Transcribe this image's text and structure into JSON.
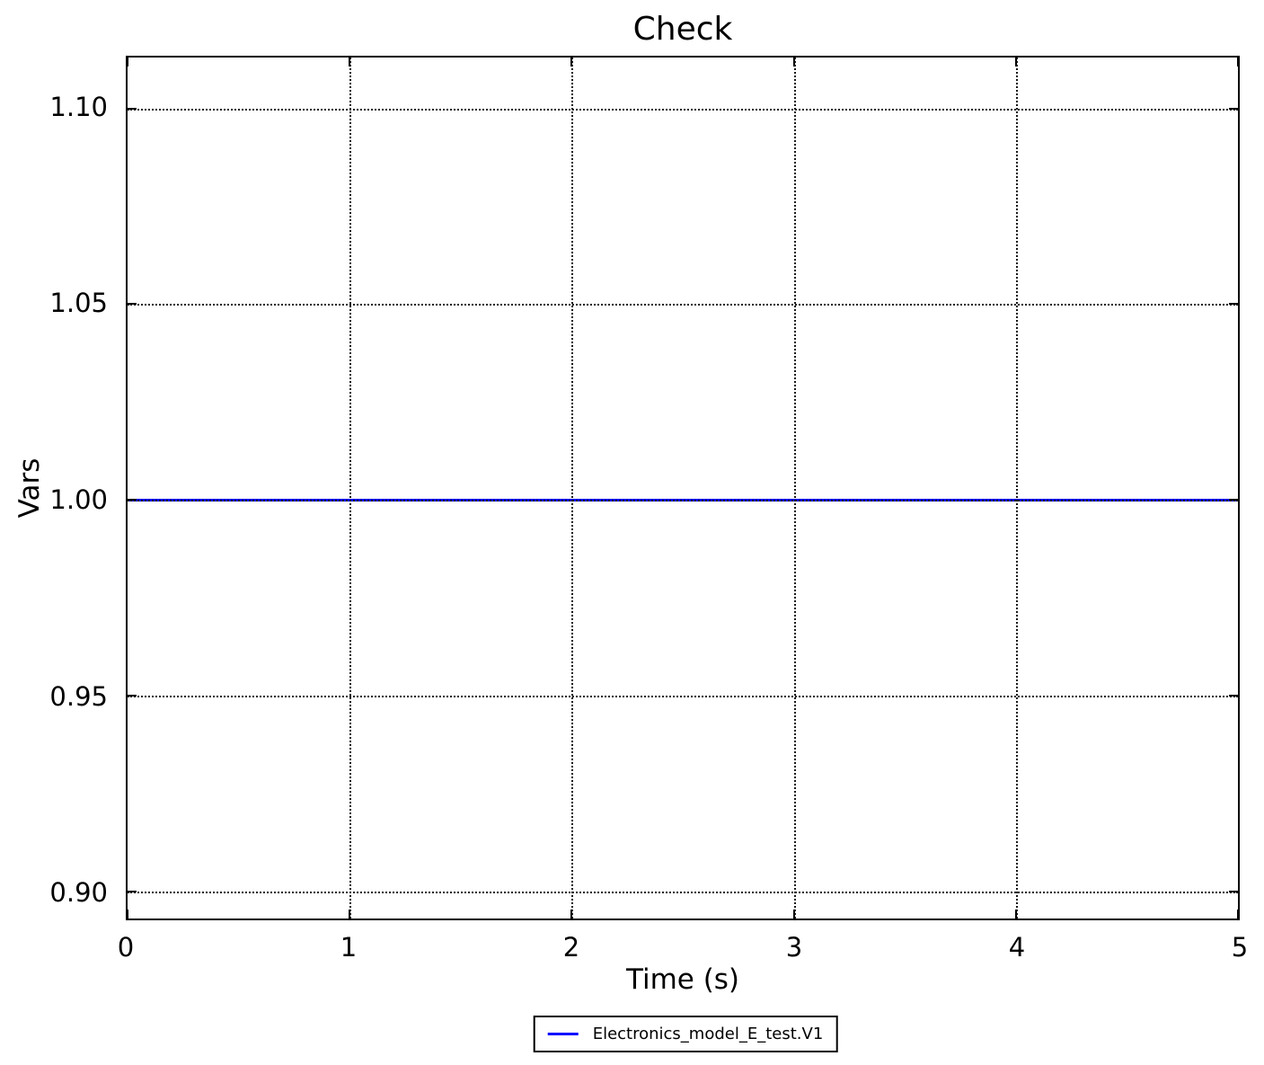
{
  "window": {
    "background": "#ffffff"
  },
  "chart_data": {
    "type": "line",
    "title": "Check",
    "xlabel": "Time (s)",
    "ylabel": "Vars",
    "xlim": [
      0,
      5
    ],
    "ylim": [
      0.893,
      1.113
    ],
    "xticks": [
      {
        "value": 0,
        "label": "0"
      },
      {
        "value": 1,
        "label": "1"
      },
      {
        "value": 2,
        "label": "2"
      },
      {
        "value": 3,
        "label": "3"
      },
      {
        "value": 4,
        "label": "4"
      },
      {
        "value": 5,
        "label": "5"
      }
    ],
    "yticks": [
      {
        "value": 0.9,
        "label": "0.90"
      },
      {
        "value": 0.95,
        "label": "0.95"
      },
      {
        "value": 1.0,
        "label": "1.00"
      },
      {
        "value": 1.05,
        "label": "1.05"
      },
      {
        "value": 1.1,
        "label": "1.10"
      }
    ],
    "grid": {
      "visible": true,
      "style": "dotted",
      "color": "#1a1a1a"
    },
    "series": [
      {
        "name": "Electronics_model_E_test.V1",
        "color": "#0000ff",
        "x": [
          0,
          5
        ],
        "y": [
          1.0,
          1.0
        ]
      }
    ],
    "legend": {
      "position": "bottom-center-outside",
      "entries": [
        {
          "label": "Electronics_model_E_test.V1",
          "color": "#0000ff"
        }
      ]
    }
  }
}
